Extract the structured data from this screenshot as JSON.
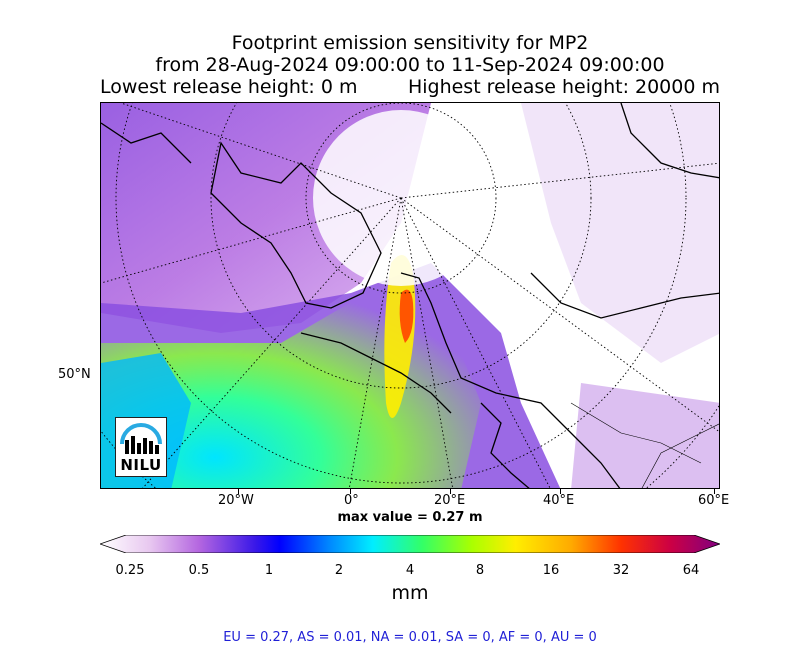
{
  "title": {
    "line1": "Footprint emission sensitivity for MP2",
    "line2": "from 28-Aug-2024 09:00:00 to 11-Sep-2024 09:00:00",
    "line3_left": "Lowest release height: 0 m",
    "line3_right": "Highest release height: 20000 m"
  },
  "map": {
    "lat_label": "50°N",
    "lon_labels": [
      "20°W",
      "0°",
      "20°E",
      "40°E",
      "60°E"
    ],
    "logo_text": "NILU",
    "max_value_text": "max value = 0.27 m"
  },
  "colorbar": {
    "ticks": [
      "0.25",
      "0.5",
      "1",
      "2",
      "4",
      "8",
      "16",
      "32",
      "64"
    ],
    "unit": "mm",
    "colors": [
      "#ffffff",
      "#cc88dd",
      "#7722dd",
      "#0000ff",
      "#0099ff",
      "#00ffee",
      "#66ff33",
      "#ffff00",
      "#ffaa00",
      "#ff3300",
      "#cc0044",
      "#880077"
    ]
  },
  "regions_text": "EU = 0.27,  AS = 0.01,  NA = 0.01,  SA = 0,  AF = 0,  AU = 0"
}
